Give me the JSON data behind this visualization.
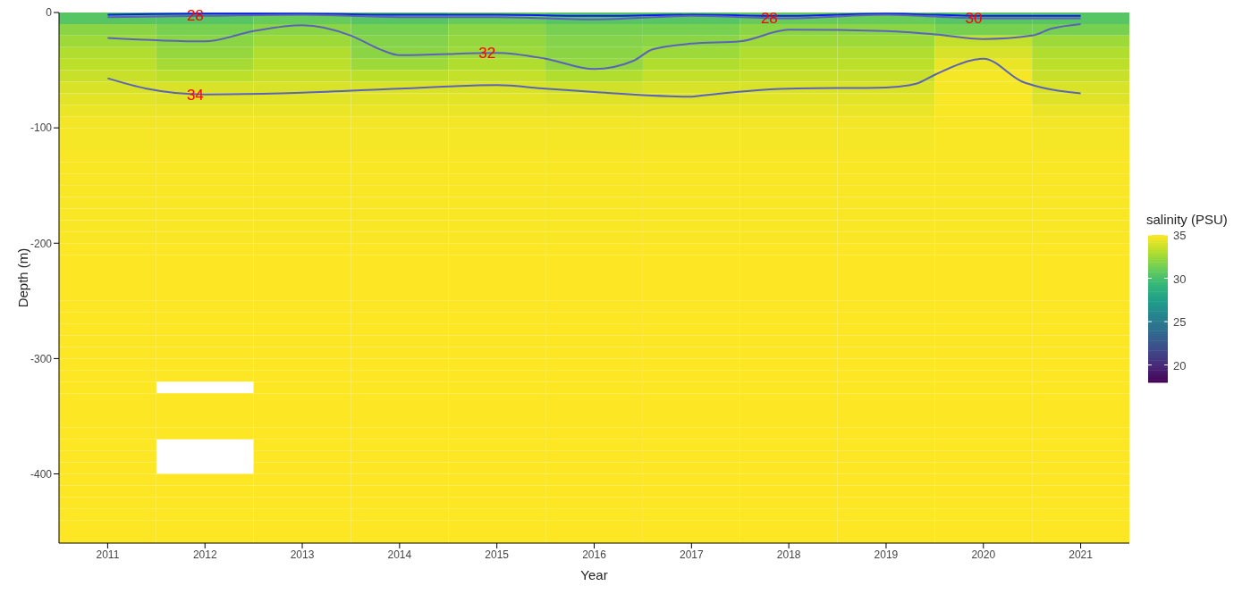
{
  "chart_data": {
    "type": "heatmap",
    "xlabel": "Year",
    "ylabel": "Depth (m)",
    "clabel": "salinity (PSU)",
    "x": [
      2011,
      2012,
      2013,
      2014,
      2015,
      2016,
      2017,
      2018,
      2019,
      2020,
      2021
    ],
    "xlim": [
      2010.5,
      2021.5
    ],
    "xticks": [
      2011,
      2012,
      2013,
      2014,
      2015,
      2016,
      2017,
      2018,
      2019,
      2020,
      2021
    ],
    "ylim": [
      -460,
      0
    ],
    "yticks": [
      0,
      -100,
      -200,
      -300,
      -400
    ],
    "clim": [
      18,
      35
    ],
    "cticks": [
      20,
      25,
      30,
      35
    ],
    "cells": [
      [
        30.5,
        30.5,
        31,
        30.5,
        31,
        30.5,
        30.5,
        31,
        31,
        30.5,
        30.5
      ],
      [
        32,
        31.5,
        32,
        31.5,
        32,
        31.5,
        31.5,
        32,
        32,
        31.5,
        31.5
      ],
      [
        32.5,
        32,
        32.5,
        31.8,
        32.3,
        31.8,
        32,
        32.5,
        32.5,
        33.5,
        32.5
      ],
      [
        33,
        32.3,
        33,
        32,
        32.5,
        32,
        32.5,
        33,
        33,
        34,
        33
      ],
      [
        33.3,
        32.7,
        33.3,
        32.5,
        33,
        32.2,
        33,
        33.3,
        33.3,
        34.5,
        33.3
      ],
      [
        33.6,
        33.3,
        33.6,
        33.3,
        33.5,
        33,
        33.5,
        33.6,
        33.6,
        34.8,
        33.6
      ],
      [
        34,
        34,
        34,
        34,
        34,
        33.8,
        34,
        34,
        34,
        34.8,
        34
      ],
      [
        34.3,
        34.2,
        34.3,
        34.3,
        34.3,
        34.2,
        34.2,
        34.3,
        34.3,
        34.9,
        34.2
      ],
      [
        34.5,
        34.5,
        34.5,
        34.5,
        34.5,
        34.5,
        34.5,
        34.5,
        34.5,
        34.9,
        34.5
      ],
      [
        34.7,
        34.7,
        34.7,
        34.7,
        34.7,
        34.7,
        34.7,
        34.7,
        34.7,
        34.9,
        34.7
      ],
      [
        34.8,
        34.8,
        34.8,
        34.8,
        34.8,
        34.8,
        34.8,
        34.8,
        34.8,
        34.9,
        34.8
      ],
      [
        34.8,
        34.8,
        34.8,
        34.8,
        34.8,
        34.8,
        34.8,
        34.8,
        34.8,
        34.9,
        34.8
      ],
      [
        34.9,
        34.9,
        34.9,
        34.9,
        34.9,
        34.9,
        34.9,
        34.9,
        34.9,
        34.9,
        34.9
      ],
      [
        34.9,
        34.9,
        34.9,
        34.9,
        34.9,
        34.9,
        34.9,
        34.9,
        34.9,
        34.9,
        34.9
      ],
      [
        34.9,
        34.9,
        34.9,
        34.9,
        34.9,
        34.9,
        34.9,
        34.9,
        34.9,
        34.9,
        34.9
      ],
      [
        34.9,
        34.9,
        34.9,
        34.9,
        34.9,
        34.9,
        34.9,
        34.9,
        34.9,
        34.9,
        34.9
      ],
      [
        34.9,
        34.9,
        34.9,
        34.9,
        34.9,
        34.9,
        34.9,
        34.9,
        34.9,
        34.9,
        34.9
      ],
      [
        34.9,
        34.9,
        34.9,
        34.9,
        34.9,
        34.9,
        34.9,
        34.9,
        34.9,
        34.9,
        34.9
      ],
      [
        34.9,
        34.9,
        34.9,
        34.9,
        34.9,
        34.9,
        34.9,
        34.9,
        34.9,
        34.9,
        34.9
      ],
      [
        34.9,
        34.9,
        34.9,
        34.9,
        34.9,
        34.9,
        34.9,
        34.9,
        34.9,
        34.9,
        34.9
      ],
      [
        35,
        35,
        35,
        35,
        35,
        35,
        35,
        35,
        35,
        35,
        35
      ],
      [
        35,
        35,
        35,
        35,
        35,
        35,
        35,
        35,
        35,
        35,
        35
      ],
      [
        35,
        35,
        35,
        35,
        35,
        35,
        35,
        35,
        35,
        35,
        35
      ],
      [
        35,
        35,
        35,
        35,
        35,
        35,
        35,
        35,
        35,
        35,
        35
      ],
      [
        35,
        35,
        35,
        35,
        35,
        35,
        35,
        35,
        35,
        35,
        35
      ],
      [
        35,
        35,
        35,
        35,
        35,
        35,
        35,
        35,
        35,
        35,
        35
      ],
      [
        35,
        35,
        35,
        35,
        35,
        35,
        35,
        35,
        35,
        35,
        35
      ],
      [
        35,
        35,
        35,
        35,
        35,
        35,
        35,
        35,
        35,
        35,
        35
      ],
      [
        35,
        35,
        35,
        35,
        35,
        35,
        35,
        35,
        35,
        35,
        35
      ],
      [
        35,
        35,
        35,
        35,
        35,
        35,
        35,
        35,
        35,
        35,
        35
      ],
      [
        35,
        35,
        35,
        35,
        35,
        35,
        35,
        35,
        35,
        35,
        35
      ],
      [
        35,
        35,
        35,
        35,
        35,
        35,
        35,
        35,
        35,
        35,
        35
      ],
      [
        35,
        null,
        35,
        35,
        35,
        35,
        35,
        35,
        35,
        35,
        35
      ],
      [
        35,
        35,
        35,
        35,
        35,
        35,
        35,
        35,
        35,
        35,
        35
      ],
      [
        35,
        35,
        35,
        35,
        35,
        35,
        35,
        35,
        35,
        35,
        35
      ],
      [
        35,
        35,
        35,
        35,
        35,
        35,
        35,
        35,
        35,
        35,
        35
      ],
      [
        35,
        35,
        35,
        35,
        35,
        35,
        35,
        35,
        35,
        35,
        35
      ],
      [
        35,
        null,
        35,
        35,
        35,
        35,
        35,
        35,
        35,
        35,
        35
      ],
      [
        35,
        null,
        35,
        35,
        35,
        35,
        35,
        35,
        35,
        35,
        35
      ],
      [
        35,
        null,
        35,
        35,
        35,
        35,
        35,
        35,
        35,
        35,
        35
      ],
      [
        35,
        35,
        35,
        35,
        35,
        35,
        35,
        35,
        35,
        35,
        35
      ],
      [
        35,
        35,
        35,
        35,
        35,
        35,
        35,
        35,
        35,
        35,
        35
      ],
      [
        35,
        35,
        35,
        35,
        35,
        35,
        35,
        35,
        35,
        35,
        35
      ],
      [
        35,
        35,
        35,
        35,
        35,
        35,
        35,
        35,
        35,
        35,
        35
      ],
      [
        35,
        35,
        35,
        35,
        35,
        35,
        35,
        35,
        35,
        35,
        35
      ],
      [
        35,
        35,
        35,
        35,
        35,
        35,
        35,
        35,
        35,
        35,
        35
      ]
    ],
    "series": [
      {
        "type": "line",
        "color": "#0a1bf0",
        "x": [
          2011,
          2012,
          2013,
          2014,
          2015,
          2016,
          2017,
          2018,
          2019,
          2020,
          2021
        ],
        "values": [
          -2,
          -1,
          -1,
          -2,
          -2,
          -3,
          -2,
          -3,
          -1,
          -3,
          -3
        ]
      },
      {
        "type": "line",
        "color": "#5b63b8",
        "x": [
          2011,
          2012,
          2013,
          2014,
          2015,
          2016,
          2017,
          2018,
          2019,
          2020,
          2021
        ],
        "values": [
          -4,
          -3,
          -2,
          -4,
          -4,
          -6,
          -3,
          -5,
          -2,
          -5,
          -5
        ]
      },
      {
        "type": "line",
        "color": "#5b63b8",
        "x": [
          2011,
          2012,
          2012.5,
          2013,
          2013.5,
          2013.8,
          2014,
          2015,
          2015.5,
          2016,
          2016.4,
          2016.6,
          2017,
          2017.5,
          2018,
          2019,
          2019.5,
          2020,
          2020.5,
          2020.7,
          2021
        ],
        "values": [
          -22,
          -25,
          -16,
          -11,
          -20,
          -32,
          -37,
          -35,
          -40,
          -49,
          -42,
          -32,
          -27,
          -25,
          -15,
          -16,
          -19,
          -23,
          -20,
          -14,
          -10
        ]
      },
      {
        "type": "line",
        "color": "#5b63b8",
        "x": [
          2011,
          2011.4,
          2012,
          2013,
          2014,
          2015,
          2015.5,
          2016,
          2017,
          2017.1,
          2018,
          2019,
          2019.3,
          2019.5,
          2019.9,
          2020,
          2020.4,
          2020.6,
          2021
        ],
        "values": [
          -57,
          -66,
          -71,
          -69.5,
          -66,
          -63,
          -66,
          -69,
          -73,
          -72,
          -66,
          -65,
          -62,
          -54,
          -41,
          -40,
          -60,
          -65,
          -70
        ]
      }
    ],
    "annotations": [
      {
        "text": "28",
        "x": 2011.9,
        "y": -2
      },
      {
        "text": "32",
        "x": 2014.9,
        "y": -35
      },
      {
        "text": "34",
        "x": 2011.9,
        "y": -71
      },
      {
        "text": "28",
        "x": 2017.8,
        "y": -5
      },
      {
        "text": "30",
        "x": 2019.9,
        "y": -5
      }
    ]
  }
}
